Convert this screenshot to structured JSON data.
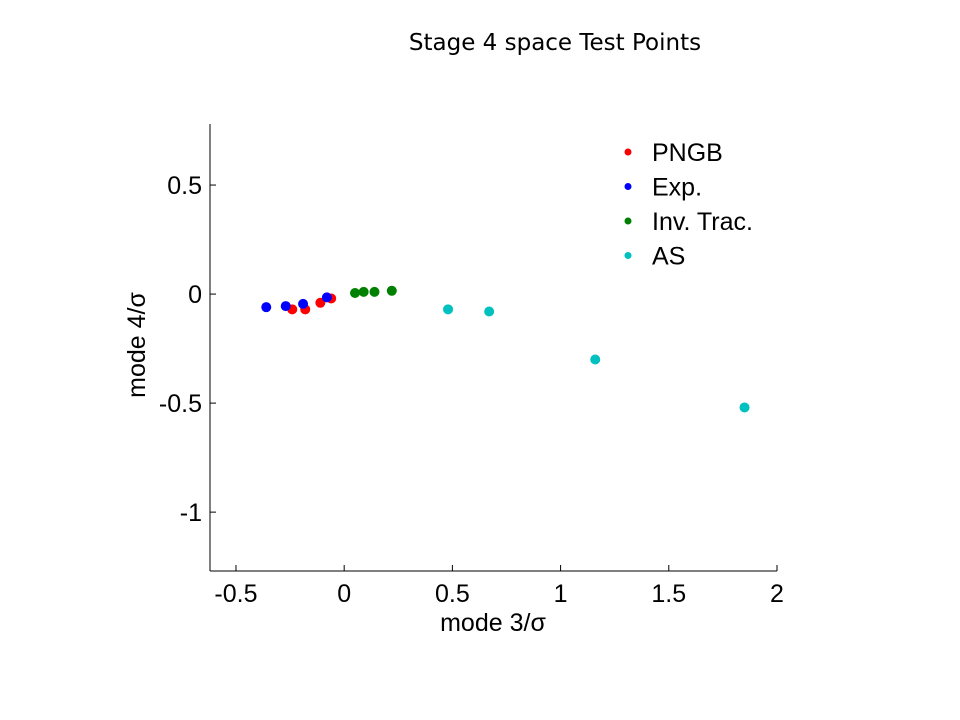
{
  "title": "Stage 4 space Test Points",
  "chart_data": {
    "type": "scatter",
    "xlabel": "mode 3/σ",
    "ylabel": "mode 4/σ",
    "xlim": [
      -0.62,
      2.0
    ],
    "ylim": [
      -1.27,
      0.78
    ],
    "xticks": [
      -0.5,
      0,
      0.5,
      1,
      1.5,
      2
    ],
    "xtick_labels": [
      "-0.5",
      "0",
      "0.5",
      "1",
      "1.5",
      "2"
    ],
    "yticks": [
      0.5,
      0,
      -0.5,
      -1
    ],
    "ytick_labels": [
      "0.5",
      "0",
      "-0.5",
      "-1"
    ],
    "grid": false,
    "legend_position": "top-right",
    "series": [
      {
        "name": "PNGB",
        "color": "#ff0000",
        "points": [
          [
            -0.24,
            -0.07
          ],
          [
            -0.18,
            -0.07
          ],
          [
            -0.11,
            -0.04
          ],
          [
            -0.06,
            -0.02
          ]
        ]
      },
      {
        "name": "Exp.",
        "color": "#0000ff",
        "points": [
          [
            -0.36,
            -0.06
          ],
          [
            -0.27,
            -0.055
          ],
          [
            -0.19,
            -0.045
          ],
          [
            -0.08,
            -0.015
          ]
        ]
      },
      {
        "name": "Inv. Trac.",
        "color": "#008000",
        "points": [
          [
            0.05,
            0.005
          ],
          [
            0.09,
            0.01
          ],
          [
            0.14,
            0.01
          ],
          [
            0.22,
            0.015
          ]
        ]
      },
      {
        "name": "AS",
        "color": "#00c0c0",
        "points": [
          [
            0.48,
            -0.07
          ],
          [
            0.67,
            -0.08
          ],
          [
            1.16,
            -0.3
          ],
          [
            1.85,
            -0.52
          ]
        ]
      }
    ]
  }
}
